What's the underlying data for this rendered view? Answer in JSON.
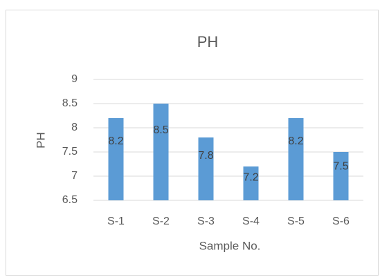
{
  "chart_data": {
    "type": "bar",
    "title": "PH",
    "x_label": "Sample No.",
    "y_label": "PH",
    "categories": [
      "S-1",
      "S-2",
      "S-3",
      "S-4",
      "S-5",
      "S-6"
    ],
    "values": [
      8.2,
      8.5,
      7.8,
      7.2,
      8.2,
      7.5
    ],
    "color": "#5b9bd5",
    "ylim": [
      6.5,
      9
    ],
    "yticks": [
      6.5,
      7,
      7.5,
      8,
      8.5,
      9
    ],
    "grid": true,
    "data_labels": true
  }
}
